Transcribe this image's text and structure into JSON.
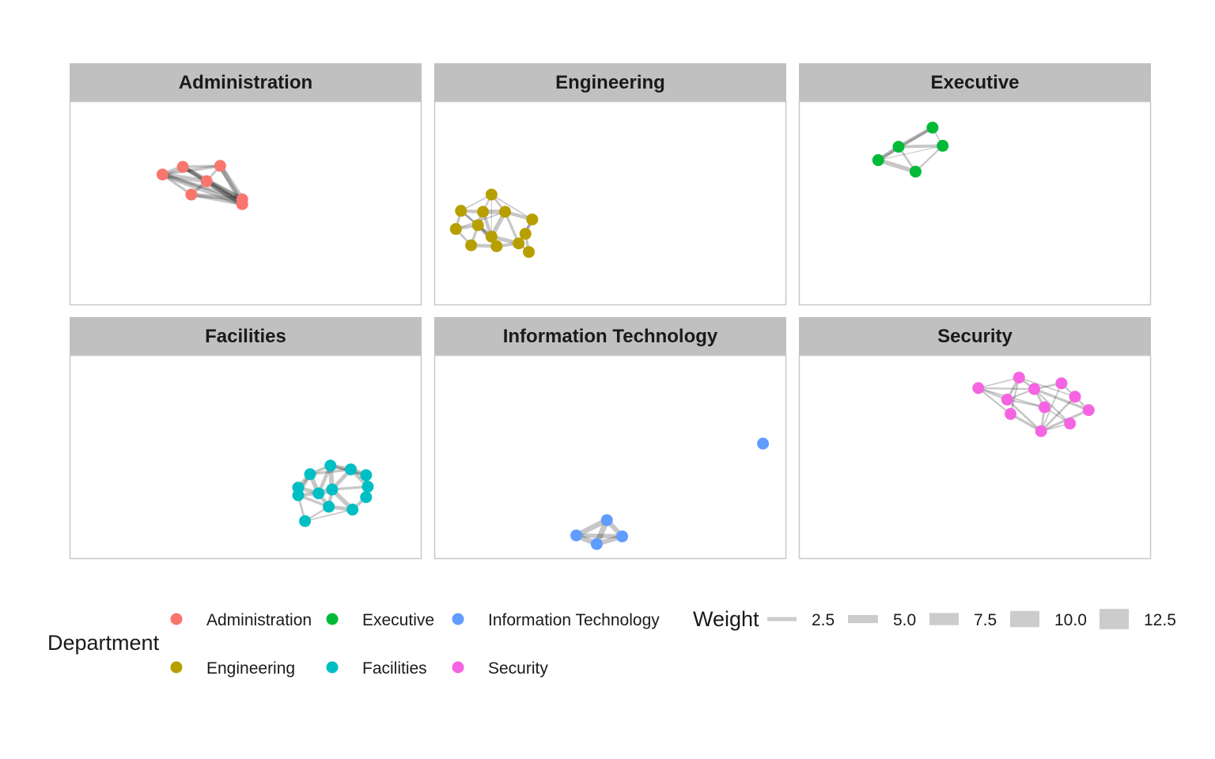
{
  "chart_data": {
    "type": "network",
    "facet_by": "Department",
    "facets": [
      {
        "name": "Administration",
        "color": "#F8766D",
        "nodes": [
          [
            0.255,
            0.35
          ],
          [
            0.315,
            0.31
          ],
          [
            0.425,
            0.305
          ],
          [
            0.385,
            0.385
          ],
          [
            0.34,
            0.455
          ],
          [
            0.49,
            0.48
          ],
          [
            0.49,
            0.505
          ]
        ],
        "edges": [
          [
            0,
            1,
            9
          ],
          [
            0,
            2,
            7
          ],
          [
            0,
            3,
            10
          ],
          [
            0,
            4,
            6
          ],
          [
            0,
            5,
            8
          ],
          [
            0,
            6,
            11
          ],
          [
            1,
            2,
            6
          ],
          [
            1,
            3,
            8
          ],
          [
            1,
            5,
            10
          ],
          [
            1,
            6,
            9
          ],
          [
            2,
            3,
            5
          ],
          [
            2,
            5,
            12
          ],
          [
            2,
            6,
            10
          ],
          [
            3,
            4,
            7
          ],
          [
            3,
            5,
            11
          ],
          [
            3,
            6,
            12
          ],
          [
            4,
            5,
            9
          ],
          [
            4,
            6,
            8
          ],
          [
            5,
            6,
            5
          ]
        ]
      },
      {
        "name": "Engineering",
        "color": "#B79F00",
        "nodes": [
          [
            0.15,
            0.455
          ],
          [
            0.06,
            0.54
          ],
          [
            0.045,
            0.635
          ],
          [
            0.125,
            0.545
          ],
          [
            0.11,
            0.615
          ],
          [
            0.19,
            0.545
          ],
          [
            0.27,
            0.585
          ],
          [
            0.25,
            0.66
          ],
          [
            0.15,
            0.675
          ],
          [
            0.09,
            0.72
          ],
          [
            0.165,
            0.725
          ],
          [
            0.23,
            0.71
          ],
          [
            0.26,
            0.755
          ]
        ],
        "edges": [
          [
            0,
            1,
            3
          ],
          [
            0,
            3,
            4
          ],
          [
            0,
            5,
            5
          ],
          [
            0,
            6,
            3
          ],
          [
            1,
            2,
            6
          ],
          [
            1,
            3,
            8
          ],
          [
            1,
            4,
            5
          ],
          [
            1,
            8,
            4
          ],
          [
            2,
            4,
            7
          ],
          [
            2,
            9,
            5
          ],
          [
            3,
            4,
            9
          ],
          [
            3,
            5,
            10
          ],
          [
            3,
            8,
            8
          ],
          [
            4,
            8,
            9
          ],
          [
            4,
            9,
            6
          ],
          [
            4,
            10,
            7
          ],
          [
            5,
            6,
            8
          ],
          [
            5,
            8,
            10
          ],
          [
            5,
            11,
            6
          ],
          [
            6,
            7,
            7
          ],
          [
            6,
            11,
            5
          ],
          [
            7,
            11,
            4
          ],
          [
            7,
            12,
            6
          ],
          [
            8,
            10,
            11
          ],
          [
            8,
            11,
            9
          ],
          [
            9,
            10,
            8
          ],
          [
            10,
            11,
            7
          ],
          [
            11,
            12,
            5
          ],
          [
            2,
            5,
            3
          ],
          [
            0,
            8,
            2
          ]
        ]
      },
      {
        "name": "Executive",
        "color": "#00BA38",
        "nodes": [
          [
            0.215,
            0.275
          ],
          [
            0.275,
            0.205
          ],
          [
            0.375,
            0.105
          ],
          [
            0.405,
            0.2
          ],
          [
            0.325,
            0.335
          ]
        ],
        "edges": [
          [
            0,
            1,
            9
          ],
          [
            0,
            2,
            6
          ],
          [
            0,
            4,
            10
          ],
          [
            1,
            2,
            8
          ],
          [
            1,
            3,
            7
          ],
          [
            1,
            4,
            5
          ],
          [
            2,
            3,
            3
          ],
          [
            3,
            4,
            4
          ],
          [
            0,
            3,
            2
          ]
        ]
      },
      {
        "name": "Facilities",
        "color": "#00BFC4",
        "nodes": [
          [
            0.69,
            0.59
          ],
          [
            0.75,
            0.545
          ],
          [
            0.81,
            0.565
          ],
          [
            0.855,
            0.595
          ],
          [
            0.86,
            0.655
          ],
          [
            0.655,
            0.66
          ],
          [
            0.655,
            0.7
          ],
          [
            0.715,
            0.69
          ],
          [
            0.755,
            0.67
          ],
          [
            0.855,
            0.71
          ],
          [
            0.745,
            0.76
          ],
          [
            0.815,
            0.775
          ],
          [
            0.675,
            0.835
          ]
        ],
        "edges": [
          [
            0,
            1,
            7
          ],
          [
            0,
            2,
            6
          ],
          [
            0,
            5,
            9
          ],
          [
            0,
            6,
            8
          ],
          [
            0,
            7,
            10
          ],
          [
            1,
            2,
            9
          ],
          [
            1,
            3,
            6
          ],
          [
            1,
            7,
            8
          ],
          [
            1,
            8,
            11
          ],
          [
            2,
            3,
            10
          ],
          [
            2,
            4,
            8
          ],
          [
            2,
            8,
            9
          ],
          [
            3,
            4,
            11
          ],
          [
            3,
            9,
            7
          ],
          [
            4,
            8,
            6
          ],
          [
            4,
            9,
            10
          ],
          [
            5,
            6,
            7
          ],
          [
            5,
            7,
            9
          ],
          [
            6,
            7,
            8
          ],
          [
            6,
            10,
            6
          ],
          [
            6,
            12,
            5
          ],
          [
            7,
            8,
            12
          ],
          [
            7,
            10,
            9
          ],
          [
            8,
            10,
            8
          ],
          [
            8,
            11,
            10
          ],
          [
            9,
            11,
            7
          ],
          [
            10,
            11,
            9
          ],
          [
            10,
            12,
            4
          ],
          [
            11,
            12,
            3
          ]
        ]
      },
      {
        "name": "Information Technology",
        "color": "#619CFF",
        "nodes": [
          [
            0.95,
            0.43
          ],
          [
            0.49,
            0.83
          ],
          [
            0.4,
            0.91
          ],
          [
            0.535,
            0.915
          ],
          [
            0.46,
            0.955
          ]
        ],
        "edges": [
          [
            1,
            2,
            12
          ],
          [
            1,
            3,
            11
          ],
          [
            1,
            4,
            13
          ],
          [
            2,
            3,
            10
          ],
          [
            2,
            4,
            12
          ],
          [
            3,
            4,
            11
          ]
        ]
      },
      {
        "name": "Security",
        "color": "#F564E3",
        "nodes": [
          [
            0.51,
            0.14
          ],
          [
            0.63,
            0.085
          ],
          [
            0.755,
            0.115
          ],
          [
            0.675,
            0.145
          ],
          [
            0.595,
            0.2
          ],
          [
            0.795,
            0.185
          ],
          [
            0.835,
            0.255
          ],
          [
            0.705,
            0.24
          ],
          [
            0.605,
            0.275
          ],
          [
            0.78,
            0.325
          ],
          [
            0.695,
            0.365
          ]
        ],
        "edges": [
          [
            0,
            1,
            3
          ],
          [
            0,
            3,
            4
          ],
          [
            0,
            4,
            5
          ],
          [
            0,
            7,
            3
          ],
          [
            0,
            8,
            4
          ],
          [
            1,
            3,
            5
          ],
          [
            1,
            4,
            6
          ],
          [
            1,
            5,
            3
          ],
          [
            1,
            8,
            4
          ],
          [
            2,
            3,
            5
          ],
          [
            2,
            5,
            4
          ],
          [
            2,
            10,
            3
          ],
          [
            3,
            4,
            4
          ],
          [
            3,
            6,
            6
          ],
          [
            3,
            7,
            5
          ],
          [
            3,
            9,
            4
          ],
          [
            4,
            7,
            4
          ],
          [
            4,
            10,
            5
          ],
          [
            5,
            6,
            4
          ],
          [
            5,
            10,
            5
          ],
          [
            6,
            10,
            6
          ],
          [
            7,
            9,
            3
          ],
          [
            7,
            10,
            5
          ],
          [
            8,
            10,
            6
          ],
          [
            9,
            10,
            3
          ]
        ]
      }
    ],
    "legend": {
      "department": {
        "title": "Department",
        "items": [
          {
            "label": "Administration",
            "color": "#F8766D"
          },
          {
            "label": "Executive",
            "color": "#00BA38"
          },
          {
            "label": "Information Technology",
            "color": "#619CFF"
          },
          {
            "label": "Engineering",
            "color": "#B79F00"
          },
          {
            "label": "Facilities",
            "color": "#00BFC4"
          },
          {
            "label": "Security",
            "color": "#F564E3"
          }
        ]
      },
      "weight": {
        "title": "Weight",
        "items": [
          {
            "label": "2.5",
            "value": 2.5
          },
          {
            "label": "5.0",
            "value": 5.0
          },
          {
            "label": "7.5",
            "value": 7.5
          },
          {
            "label": "10.0",
            "value": 10.0
          },
          {
            "label": "12.5",
            "value": 12.5
          }
        ]
      }
    },
    "strip_color": "#c0c0c0",
    "panel_border_color": "#c8c8c8",
    "edge_color": "#000000"
  }
}
